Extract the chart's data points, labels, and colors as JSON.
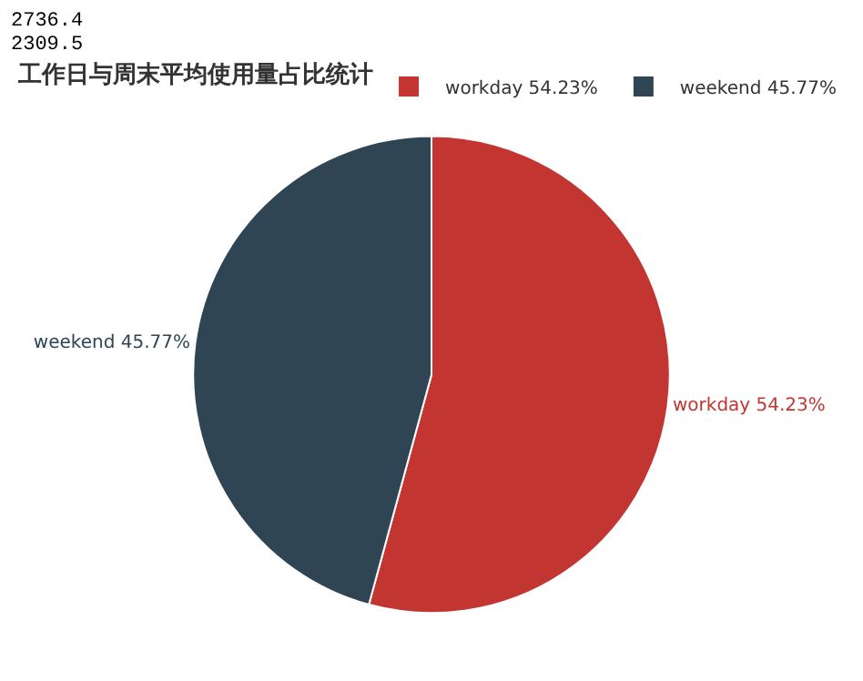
{
  "chart_data": {
    "type": "pie",
    "title": "工作日与周末平均使用量占比统计",
    "categories": [
      "workday",
      "weekend"
    ],
    "values": [
      54.23,
      45.77
    ],
    "value_labels": [
      "54.23%",
      "45.77%"
    ],
    "colors": [
      "#c23531",
      "#2f4554"
    ],
    "legend": "top right",
    "annotations": [
      "2736.4",
      "2309.5"
    ]
  }
}
